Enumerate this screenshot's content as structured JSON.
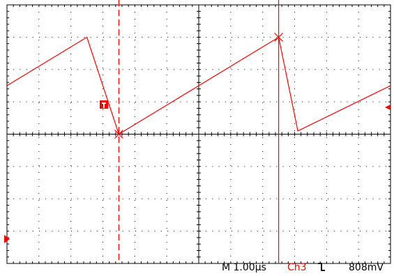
{
  "status_bar": {
    "timebase": "M 1.00µs",
    "channel": "Ch3",
    "trigger_slope_icon": "falling-edge-icon",
    "trigger_level": "808mV"
  },
  "markers": {
    "trigger_position_icon": "trigger-position-T-icon",
    "trigger_level_icon": "trigger-level-arrow-icon",
    "channel_ground_icon": "channel-ground-marker-icon"
  },
  "colors": {
    "trace": "#ff0000",
    "grid": "#000000",
    "background": "#ffffff"
  },
  "chart_data": {
    "type": "line",
    "grid": true,
    "time_per_div_us": 1.0,
    "series": [
      {
        "x": [
          0.0,
          2.5,
          3.5,
          8.5,
          9.1,
          12.0
        ],
        "y": [
          1.5,
          3.0,
          0.0,
          3.0,
          0.1,
          1.5
        ]
      }
    ],
    "cursors": [
      {
        "type": "vertical",
        "style": "dashed",
        "x": 3.5
      },
      {
        "type": "vertical",
        "style": "solid",
        "x": 8.5
      }
    ],
    "cursor_points": [
      {
        "x": 3.5,
        "y": 0.0
      },
      {
        "x": 8.5,
        "y": 3.0
      }
    ]
  }
}
